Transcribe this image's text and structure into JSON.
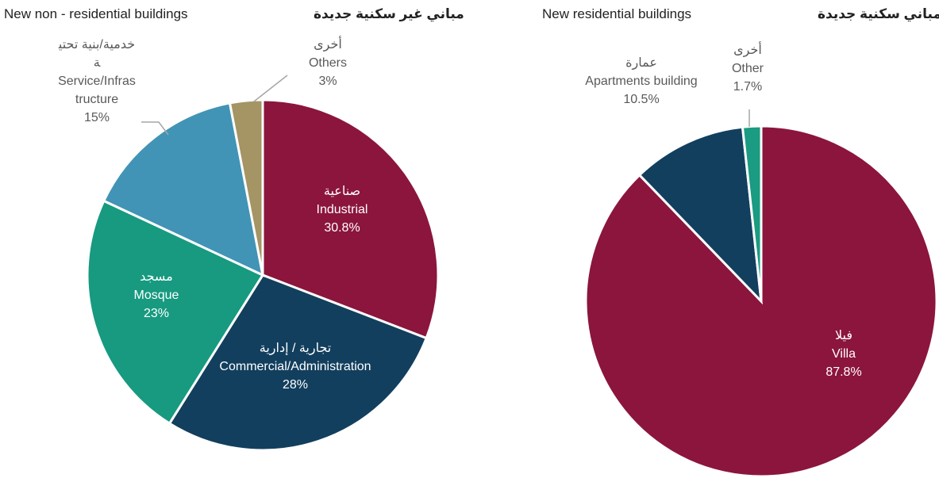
{
  "chart_data": [
    {
      "type": "pie",
      "title": "New non - residential buildings",
      "title_ar": "مباني غير سكنية جديدة",
      "categories": [
        "Industrial",
        "Commercial/Administration",
        "Mosque",
        "Service/Infrastructure",
        "Others"
      ],
      "categories_ar": [
        "صناعية",
        "تجارية / إدارية",
        "مسجد",
        "خدمية/بنية تحتية",
        "أخرى"
      ],
      "values": [
        30.8,
        28,
        23,
        15,
        3
      ],
      "value_labels": [
        "30.8%",
        "28%",
        "23%",
        "15%",
        "3%"
      ],
      "colors": [
        "#8b153d",
        "#123f5e",
        "#179a80",
        "#4194b5",
        "#a59464"
      ]
    },
    {
      "type": "pie",
      "title": "New residential buildings",
      "title_ar": "مباني سكنية جديدة",
      "categories": [
        "Villa",
        "Apartments building",
        "Other"
      ],
      "categories_ar": [
        "فيلا",
        "عمارة",
        "أخرى"
      ],
      "values": [
        87.8,
        10.5,
        1.7
      ],
      "value_labels": [
        "87.8%",
        "10.5%",
        "1.7%"
      ],
      "colors": [
        "#8b153d",
        "#123f5e",
        "#1a9b82"
      ]
    }
  ]
}
